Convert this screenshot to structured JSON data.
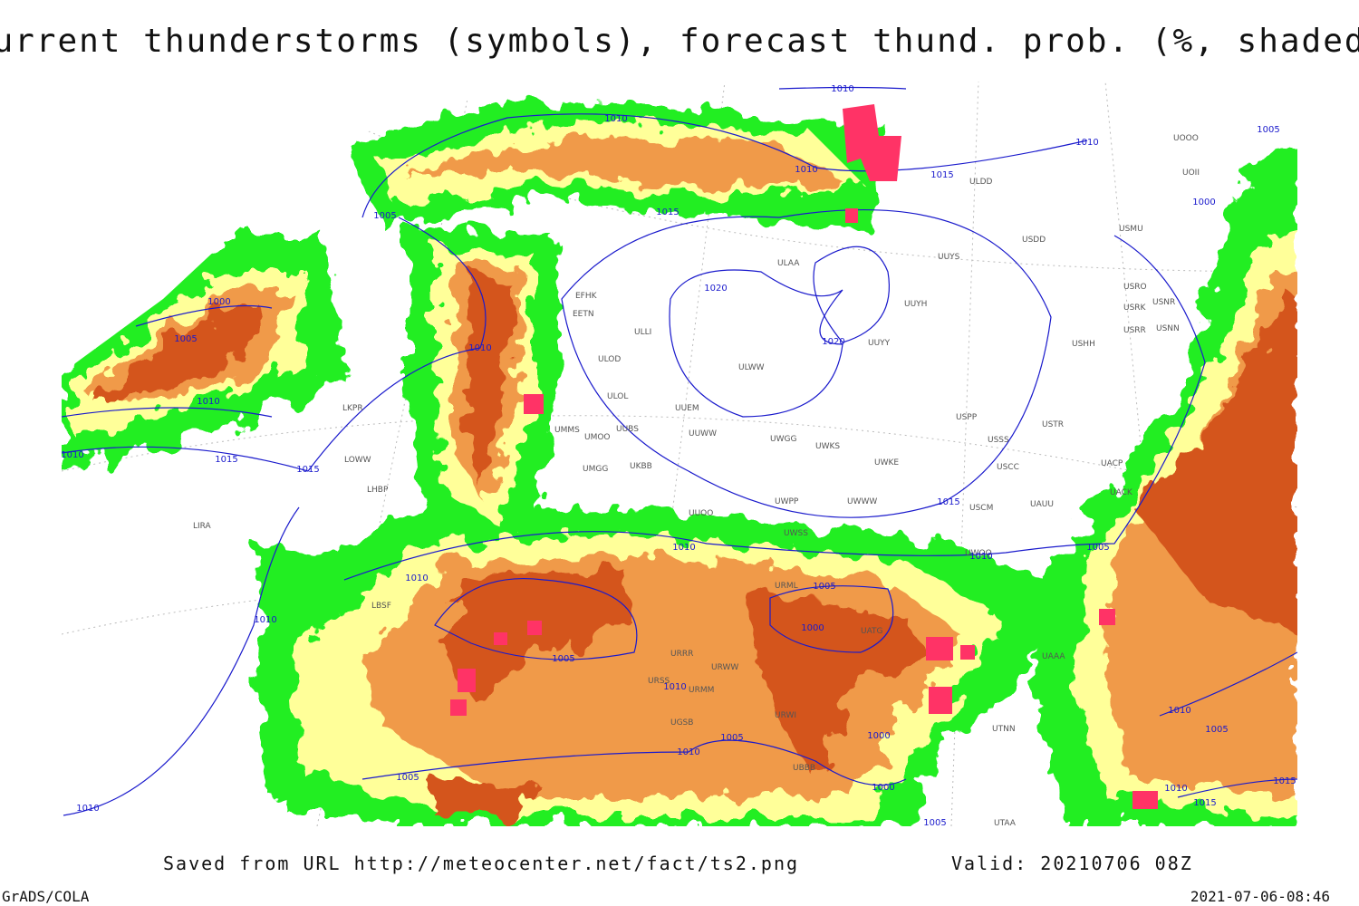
{
  "title": "Current thunderstorms (symbols), forecast thund. prob. (%, shaded)",
  "footer": {
    "source": "Saved from URL http://meteocenter.net/fact/ts2.png",
    "valid": "Valid: 20210706 08Z",
    "software": "GrADS/COLA",
    "timestamp": "2021-07-06-08:46"
  },
  "stations": [
    "ULAA",
    "UUYS",
    "UUYH",
    "UUYY",
    "ULWW",
    "UUEM",
    "ULOL",
    "ULOD",
    "EFHK",
    "EETN",
    "ULLI",
    "UMMS",
    "UMOO",
    "UUBS",
    "UUWW",
    "UWGG",
    "UWKS",
    "UWKE",
    "USPP",
    "USSS",
    "USTR",
    "USCC",
    "UACP",
    "UACK",
    "USCM",
    "UAUU",
    "UWWW",
    "UWPP",
    "UUOO",
    "UMGG",
    "UKBB",
    "UWSS",
    "UWOO",
    "USDD",
    "ULDD",
    "USMU",
    "USRO",
    "USRK",
    "USNR",
    "USRR",
    "USHH",
    "USNN",
    "UOOO",
    "UOII",
    "LKPR",
    "LOWW",
    "LHBP",
    "LIRA",
    "LBSF",
    "UTNN",
    "UAAA",
    "UTAA",
    "UBBB",
    "URSS",
    "UGSB",
    "URWW",
    "URMM",
    "URRR",
    "URWI",
    "UATG",
    "URML"
  ],
  "isobar_labels": [
    "1010",
    "1010",
    "1010",
    "1010",
    "1015",
    "1015",
    "1005",
    "1000",
    "1005",
    "1010",
    "1010",
    "1010",
    "1015",
    "1015",
    "1020",
    "1020",
    "1015",
    "1010",
    "1010",
    "1005",
    "1010",
    "1010",
    "1005",
    "1005",
    "1000",
    "1010",
    "1005",
    "1000",
    "1010",
    "1005",
    "1010",
    "1000",
    "1005",
    "1010",
    "1005",
    "1010",
    "1015",
    "1015",
    "1005",
    "1000"
  ]
}
